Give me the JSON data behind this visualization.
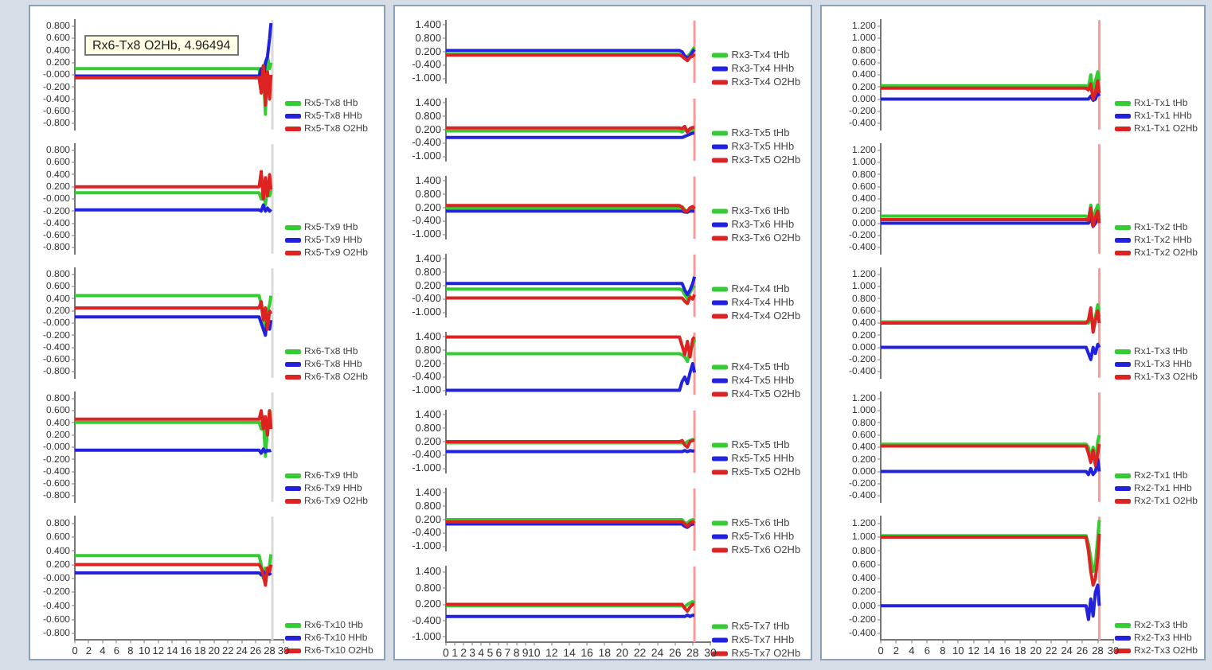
{
  "chart_data": [
    {
      "type": "line",
      "annotations": [
        "Rx6-Tx8 O2Hb, 4.96494"
      ],
      "x": [
        0,
        26.5,
        26.8,
        27.1,
        27.4,
        27.7,
        28.0,
        28.2
      ],
      "xlim": [
        0,
        30
      ],
      "ylim": [
        -0.9,
        0.9
      ],
      "yticks": [
        {
          "value": 0.8,
          "label": "0.800"
        },
        {
          "value": 0.6,
          "label": "0.600"
        },
        {
          "value": 0.4,
          "label": "0.400"
        },
        {
          "value": 0.2,
          "label": "0.200"
        },
        {
          "value": 0,
          "label": "-0.000"
        },
        {
          "value": -0.2,
          "label": "-0.200"
        },
        {
          "value": -0.4,
          "label": "-0.400"
        },
        {
          "value": -0.6,
          "label": "-0.600"
        },
        {
          "value": -0.8,
          "label": "-0.800"
        }
      ],
      "tick_labels": "y",
      "grid": false,
      "legend": "bottom right",
      "ref_lines": [
        {
          "axis": "x",
          "value": 28.4,
          "color": "#d9d9d9"
        }
      ],
      "series": [
        {
          "name": "Rx5-Tx8 tHb",
          "color": "#33cc33",
          "values": [
            0.1,
            0.1,
            -0.2,
            0.15,
            -0.65,
            0.3,
            0.1,
            0.2
          ]
        },
        {
          "name": "Rx5-Tx8 HHb",
          "color": "#2222dd",
          "values": [
            -0.02,
            -0.02,
            0.1,
            -0.1,
            0.2,
            0.3,
            0.6,
            0.85
          ]
        },
        {
          "name": "Rx5-Tx8 O2Hb",
          "color": "#dd2222",
          "values": [
            -0.05,
            -0.05,
            -0.3,
            0.15,
            -0.5,
            0.05,
            -0.4,
            0.0
          ]
        }
      ]
    },
    {
      "type": "line",
      "x": [
        0,
        26.5,
        26.8,
        27.1,
        27.4,
        27.7,
        28.0,
        28.2
      ],
      "xlim": [
        0,
        30
      ],
      "ylim": [
        -0.9,
        0.9
      ],
      "yticks": [
        {
          "value": 0.8,
          "label": "0.800"
        },
        {
          "value": 0.6,
          "label": "0.600"
        },
        {
          "value": 0.4,
          "label": "0.400"
        },
        {
          "value": 0.2,
          "label": "0.200"
        },
        {
          "value": 0,
          "label": "-0.000"
        },
        {
          "value": -0.2,
          "label": "-0.200"
        },
        {
          "value": -0.4,
          "label": "-0.400"
        },
        {
          "value": -0.6,
          "label": "-0.600"
        },
        {
          "value": -0.8,
          "label": "-0.800"
        }
      ],
      "tick_labels": "y",
      "grid": false,
      "legend": "bottom right",
      "ref_lines": [
        {
          "axis": "x",
          "value": 28.4,
          "color": "#d9d9d9"
        }
      ],
      "series": [
        {
          "name": "Rx5-Tx9 tHb",
          "color": "#33cc33",
          "values": [
            0.1,
            0.1,
            0.0,
            0.15,
            -0.1,
            0.2,
            0.05,
            0.15
          ]
        },
        {
          "name": "Rx5-Tx9 HHb",
          "color": "#2222dd",
          "values": [
            -0.18,
            -0.18,
            -0.2,
            -0.1,
            -0.2,
            -0.15,
            -0.2,
            -0.17
          ]
        },
        {
          "name": "Rx5-Tx9 O2Hb",
          "color": "#dd2222",
          "values": [
            0.2,
            0.2,
            0.45,
            0.0,
            0.35,
            0.05,
            0.4,
            0.15
          ]
        }
      ]
    },
    {
      "type": "line",
      "x": [
        0,
        26.5,
        26.8,
        27.1,
        27.4,
        27.7,
        28.0,
        28.2
      ],
      "xlim": [
        0,
        30
      ],
      "ylim": [
        -0.9,
        0.9
      ],
      "yticks": [
        {
          "value": 0.8,
          "label": "0.800"
        },
        {
          "value": 0.6,
          "label": "0.600"
        },
        {
          "value": 0.4,
          "label": "0.400"
        },
        {
          "value": 0.2,
          "label": "0.200"
        },
        {
          "value": 0,
          "label": "-0.000"
        },
        {
          "value": -0.2,
          "label": "-0.200"
        },
        {
          "value": -0.4,
          "label": "-0.400"
        },
        {
          "value": -0.6,
          "label": "-0.600"
        },
        {
          "value": -0.8,
          "label": "-0.800"
        }
      ],
      "tick_labels": "y",
      "grid": false,
      "legend": "bottom right",
      "ref_lines": [
        {
          "axis": "x",
          "value": 28.4,
          "color": "#d9d9d9"
        }
      ],
      "series": [
        {
          "name": "Rx6-Tx8 tHb",
          "color": "#33cc33",
          "values": [
            0.45,
            0.45,
            0.3,
            0.1,
            -0.05,
            0.2,
            0.3,
            0.45
          ]
        },
        {
          "name": "Rx6-Tx8 HHb",
          "color": "#2222dd",
          "values": [
            0.1,
            0.1,
            0.0,
            -0.1,
            -0.2,
            0.1,
            -0.1,
            0.05
          ]
        },
        {
          "name": "Rx6-Tx8 O2Hb",
          "color": "#dd2222",
          "values": [
            0.25,
            0.25,
            0.35,
            0.05,
            0.25,
            -0.1,
            0.2,
            0.15
          ]
        }
      ]
    },
    {
      "type": "line",
      "x": [
        0,
        26.5,
        26.8,
        27.1,
        27.4,
        27.7,
        28.0,
        28.2
      ],
      "xlim": [
        0,
        30
      ],
      "ylim": [
        -0.9,
        0.9
      ],
      "yticks": [
        {
          "value": 0.8,
          "label": "0.800"
        },
        {
          "value": 0.6,
          "label": "0.600"
        },
        {
          "value": 0.4,
          "label": "0.400"
        },
        {
          "value": 0.2,
          "label": "0.200"
        },
        {
          "value": 0,
          "label": "-0.000"
        },
        {
          "value": -0.2,
          "label": "-0.200"
        },
        {
          "value": -0.4,
          "label": "-0.400"
        },
        {
          "value": -0.6,
          "label": "-0.600"
        },
        {
          "value": -0.8,
          "label": "-0.800"
        }
      ],
      "tick_labels": "y",
      "grid": false,
      "legend": "bottom right",
      "ref_lines": [
        {
          "axis": "x",
          "value": 28.4,
          "color": "#d9d9d9"
        }
      ],
      "series": [
        {
          "name": "Rx6-Tx9 tHb",
          "color": "#33cc33",
          "values": [
            0.41,
            0.41,
            0.3,
            0.5,
            -0.15,
            0.3,
            0.6,
            0.35
          ]
        },
        {
          "name": "Rx6-Tx9 HHb",
          "color": "#2222dd",
          "values": [
            -0.05,
            -0.05,
            -0.1,
            -0.03,
            -0.08,
            -0.05,
            -0.06,
            -0.05
          ]
        },
        {
          "name": "Rx6-Tx9 O2Hb",
          "color": "#dd2222",
          "values": [
            0.46,
            0.46,
            0.6,
            0.3,
            0.5,
            0.2,
            0.6,
            0.3
          ]
        }
      ]
    },
    {
      "type": "line",
      "x": [
        0,
        26.5,
        26.8,
        27.1,
        27.4,
        27.7,
        28.0,
        28.2
      ],
      "xlim": [
        0,
        30
      ],
      "xticks": [
        0,
        2,
        4,
        6,
        8,
        10,
        12,
        14,
        16,
        18,
        20,
        22,
        24,
        26,
        28,
        30
      ],
      "ylim": [
        -0.9,
        0.9
      ],
      "yticks": [
        {
          "value": 0.8,
          "label": "0.800"
        },
        {
          "value": 0.6,
          "label": "0.600"
        },
        {
          "value": 0.4,
          "label": "0.400"
        },
        {
          "value": 0.2,
          "label": "0.200"
        },
        {
          "value": 0,
          "label": "-0.000"
        },
        {
          "value": -0.2,
          "label": "-0.200"
        },
        {
          "value": -0.4,
          "label": "-0.400"
        },
        {
          "value": -0.6,
          "label": "-0.600"
        },
        {
          "value": -0.8,
          "label": "-0.800"
        }
      ],
      "grid": false,
      "legend": "bottom right",
      "ref_lines": [
        {
          "axis": "x",
          "value": 28.4,
          "color": "#d9d9d9"
        }
      ],
      "series": [
        {
          "name": "Rx6-Tx10 tHb",
          "color": "#33cc33",
          "values": [
            0.33,
            0.33,
            0.2,
            0.0,
            0.15,
            0.05,
            0.2,
            0.35
          ]
        },
        {
          "name": "Rx6-Tx10 HHb",
          "color": "#2222dd",
          "values": [
            0.08,
            0.08,
            0.05,
            0.1,
            0.05,
            0.08,
            0.06,
            0.08
          ]
        },
        {
          "name": "Rx6-Tx10 O2Hb",
          "color": "#dd2222",
          "values": [
            0.2,
            0.2,
            0.15,
            0.05,
            -0.1,
            0.15,
            0.1,
            0.2
          ]
        }
      ]
    },
    {
      "type": "line",
      "x": [
        0,
        26.5,
        26.8,
        27.1,
        27.4,
        27.7,
        28.0,
        28.2
      ],
      "xlim": [
        0,
        30
      ],
      "ylim": [
        -1.2,
        1.6
      ],
      "yticks": [
        {
          "value": 1.4,
          "label": "1.400"
        },
        {
          "value": 0.8,
          "label": "0.800"
        },
        {
          "value": 0.2,
          "label": "0.200"
        },
        {
          "value": -0.4,
          "label": "-0.400"
        },
        {
          "value": -1,
          "label": "-1.000"
        }
      ],
      "tick_labels": "y",
      "grid": false,
      "legend": "bottom right",
      "ref_lines": [
        {
          "axis": "x",
          "value": 28.2,
          "color": "#ff9999"
        }
      ],
      "series": [
        {
          "name": "Rx3-Tx4 tHb",
          "color": "#33cc33",
          "values": [
            0.08,
            0.08,
            0.0,
            -0.1,
            0.0,
            0.1,
            0.3,
            0.4
          ]
        },
        {
          "name": "Rx3-Tx4 HHb",
          "color": "#2222dd",
          "values": [
            0.25,
            0.25,
            0.2,
            0.0,
            -0.1,
            0.0,
            0.2,
            0.3
          ]
        },
        {
          "name": "Rx3-Tx4 O2Hb",
          "color": "#dd2222",
          "values": [
            0.05,
            0.05,
            0.0,
            -0.1,
            -0.2,
            -0.05,
            0.0,
            0.1
          ]
        }
      ]
    },
    {
      "type": "line",
      "x": [
        0,
        26.5,
        26.8,
        27.1,
        27.4,
        27.7,
        28.0,
        28.2
      ],
      "xlim": [
        0,
        30
      ],
      "ylim": [
        -1.2,
        1.6
      ],
      "yticks": [
        {
          "value": 1.4,
          "label": "1.400"
        },
        {
          "value": 0.8,
          "label": "0.800"
        },
        {
          "value": 0.2,
          "label": "0.200"
        },
        {
          "value": -0.4,
          "label": "-0.400"
        },
        {
          "value": -1,
          "label": "-1.000"
        }
      ],
      "tick_labels": "y",
      "grid": false,
      "legend": "bottom right",
      "ref_lines": [
        {
          "axis": "x",
          "value": 28.2,
          "color": "#ff9999"
        }
      ],
      "series": [
        {
          "name": "Rx3-Tx5 tHb",
          "color": "#33cc33",
          "values": [
            0.15,
            0.15,
            0.1,
            0.2,
            0.1,
            0.15,
            0.2,
            0.2
          ]
        },
        {
          "name": "Rx3-Tx5 HHb",
          "color": "#2222dd",
          "values": [
            -0.15,
            -0.15,
            -0.15,
            -0.1,
            -0.05,
            0.0,
            0.05,
            0.05
          ]
        },
        {
          "name": "Rx3-Tx5 O2Hb",
          "color": "#dd2222",
          "values": [
            0.28,
            0.28,
            0.25,
            0.35,
            0.1,
            0.25,
            0.3,
            0.3
          ]
        }
      ]
    },
    {
      "type": "line",
      "x": [
        0,
        26.5,
        26.8,
        27.1,
        27.4,
        27.7,
        28.0,
        28.2
      ],
      "xlim": [
        0,
        30
      ],
      "ylim": [
        -1.2,
        1.6
      ],
      "yticks": [
        {
          "value": 1.4,
          "label": "1.400"
        },
        {
          "value": 0.8,
          "label": "0.800"
        },
        {
          "value": 0.2,
          "label": "0.200"
        },
        {
          "value": -0.4,
          "label": "-0.400"
        },
        {
          "value": -1,
          "label": "-1.000"
        }
      ],
      "tick_labels": "y",
      "grid": false,
      "legend": "bottom right",
      "ref_lines": [
        {
          "axis": "x",
          "value": 28.2,
          "color": "#ff9999"
        }
      ],
      "series": [
        {
          "name": "Rx3-Tx6 tHb",
          "color": "#33cc33",
          "values": [
            0.2,
            0.2,
            0.25,
            0.1,
            0.0,
            0.15,
            0.2,
            0.15
          ]
        },
        {
          "name": "Rx3-Tx6 HHb",
          "color": "#2222dd",
          "values": [
            0.05,
            0.05,
            0.05,
            0.0,
            0.0,
            0.05,
            0.05,
            0.05
          ]
        },
        {
          "name": "Rx3-Tx6 O2Hb",
          "color": "#dd2222",
          "values": [
            0.3,
            0.3,
            0.2,
            0.05,
            0.05,
            0.2,
            0.25,
            0.15
          ]
        }
      ]
    },
    {
      "type": "line",
      "x": [
        0,
        26.5,
        26.8,
        27.1,
        27.4,
        27.7,
        28.0,
        28.2
      ],
      "xlim": [
        0,
        30
      ],
      "ylim": [
        -1.2,
        1.6
      ],
      "yticks": [
        {
          "value": 1.4,
          "label": "1.400"
        },
        {
          "value": 0.8,
          "label": "0.800"
        },
        {
          "value": 0.2,
          "label": "0.200"
        },
        {
          "value": -0.4,
          "label": "-0.400"
        },
        {
          "value": -1,
          "label": "-1.000"
        }
      ],
      "tick_labels": "y",
      "grid": false,
      "legend": "bottom right",
      "ref_lines": [
        {
          "axis": "x",
          "value": 28.2,
          "color": "#ff9999"
        }
      ],
      "series": [
        {
          "name": "Rx4-Tx4 tHb",
          "color": "#33cc33",
          "values": [
            0.05,
            0.05,
            0.0,
            -0.2,
            -0.4,
            -0.1,
            0.1,
            0.2
          ]
        },
        {
          "name": "Rx4-Tx4 HHb",
          "color": "#2222dd",
          "values": [
            0.3,
            0.3,
            0.3,
            0.0,
            -0.2,
            0.0,
            0.3,
            0.6
          ]
        },
        {
          "name": "Rx4-Tx4 O2Hb",
          "color": "#dd2222",
          "values": [
            -0.35,
            -0.35,
            -0.35,
            -0.5,
            -0.6,
            -0.3,
            -0.4,
            -0.2
          ]
        }
      ]
    },
    {
      "type": "line",
      "x": [
        0,
        26.5,
        26.8,
        27.1,
        27.4,
        27.7,
        28.0,
        28.2
      ],
      "xlim": [
        0,
        30
      ],
      "ylim": [
        -1.2,
        1.6
      ],
      "yticks": [
        {
          "value": 1.4,
          "label": "1.400"
        },
        {
          "value": 0.8,
          "label": "0.800"
        },
        {
          "value": 0.2,
          "label": "0.200"
        },
        {
          "value": -0.4,
          "label": "-0.400"
        },
        {
          "value": -1,
          "label": "-1.000"
        }
      ],
      "tick_labels": "y",
      "grid": false,
      "legend": "bottom right",
      "ref_lines": [
        {
          "axis": "x",
          "value": 28.2,
          "color": "#ff9999"
        }
      ],
      "series": [
        {
          "name": "Rx4-Tx5 tHb",
          "color": "#33cc33",
          "values": [
            0.65,
            0.65,
            0.6,
            0.5,
            0.3,
            0.8,
            1.0,
            1.3
          ]
        },
        {
          "name": "Rx4-Tx5 HHb",
          "color": "#2222dd",
          "values": [
            -1.0,
            -1.0,
            -0.6,
            -0.4,
            -0.7,
            -0.2,
            0.2,
            -0.2
          ]
        },
        {
          "name": "Rx4-Tx5 O2Hb",
          "color": "#dd2222",
          "values": [
            1.4,
            1.4,
            1.0,
            0.6,
            1.2,
            0.5,
            1.3,
            1.4
          ]
        }
      ]
    },
    {
      "type": "line",
      "x": [
        0,
        26.5,
        26.8,
        27.1,
        27.4,
        27.7,
        28.0,
        28.2
      ],
      "xlim": [
        0,
        30
      ],
      "ylim": [
        -1.2,
        1.6
      ],
      "yticks": [
        {
          "value": 1.4,
          "label": "1.400"
        },
        {
          "value": 0.8,
          "label": "0.800"
        },
        {
          "value": 0.2,
          "label": "0.200"
        },
        {
          "value": -0.4,
          "label": "-0.400"
        },
        {
          "value": -1,
          "label": "-1.000"
        }
      ],
      "tick_labels": "y",
      "grid": false,
      "legend": "bottom right",
      "ref_lines": [
        {
          "axis": "x",
          "value": 28.2,
          "color": "#ff9999"
        }
      ],
      "series": [
        {
          "name": "Rx5-Tx5 tHb",
          "color": "#33cc33",
          "values": [
            0.15,
            0.15,
            0.15,
            0.1,
            0.2,
            0.25,
            0.3,
            0.25
          ]
        },
        {
          "name": "Rx5-Tx5 HHb",
          "color": "#2222dd",
          "values": [
            -0.25,
            -0.25,
            -0.25,
            -0.2,
            -0.25,
            -0.2,
            -0.22,
            -0.22
          ]
        },
        {
          "name": "Rx5-Tx5 O2Hb",
          "color": "#dd2222",
          "values": [
            0.2,
            0.2,
            0.25,
            0.05,
            -0.05,
            0.2,
            0.25,
            0.25
          ]
        }
      ]
    },
    {
      "type": "line",
      "x": [
        0,
        26.5,
        26.8,
        27.1,
        27.4,
        27.7,
        28.0,
        28.2
      ],
      "xlim": [
        0,
        30
      ],
      "ylim": [
        -1.2,
        1.6
      ],
      "yticks": [
        {
          "value": 1.4,
          "label": "1.400"
        },
        {
          "value": 0.8,
          "label": "0.800"
        },
        {
          "value": 0.2,
          "label": "0.200"
        },
        {
          "value": -0.4,
          "label": "-0.400"
        },
        {
          "value": -1,
          "label": "-1.000"
        }
      ],
      "tick_labels": "y",
      "grid": false,
      "legend": "bottom right",
      "ref_lines": [
        {
          "axis": "x",
          "value": 28.2,
          "color": "#ff9999"
        }
      ],
      "series": [
        {
          "name": "Rx5-Tx6 tHb",
          "color": "#33cc33",
          "values": [
            0.2,
            0.2,
            0.2,
            0.05,
            0.05,
            0.15,
            0.2,
            0.15
          ]
        },
        {
          "name": "Rx5-Tx6 HHb",
          "color": "#2222dd",
          "values": [
            0.0,
            0.0,
            0.0,
            -0.1,
            -0.15,
            -0.05,
            0.0,
            0.0
          ]
        },
        {
          "name": "Rx5-Tx6 O2Hb",
          "color": "#dd2222",
          "values": [
            0.1,
            0.1,
            0.1,
            0.0,
            -0.1,
            0.05,
            0.1,
            0.05
          ]
        }
      ]
    },
    {
      "type": "line",
      "x": [
        0,
        26.5,
        26.8,
        27.1,
        27.4,
        27.7,
        28.0,
        28.2
      ],
      "xlim": [
        0,
        30
      ],
      "xticks": [
        0,
        1,
        2,
        3,
        4,
        5,
        6,
        7,
        8,
        9,
        10,
        12,
        14,
        16,
        18,
        20,
        22,
        24,
        26,
        28,
        30
      ],
      "ylim": [
        -1.2,
        1.6
      ],
      "yticks": [
        {
          "value": 1.4,
          "label": "1.400"
        },
        {
          "value": 0.8,
          "label": "0.800"
        },
        {
          "value": 0.2,
          "label": "0.200"
        },
        {
          "value": -0.4,
          "label": "-0.400"
        },
        {
          "value": -1,
          "label": "-1.000"
        }
      ],
      "grid": false,
      "legend": "bottom right",
      "ref_lines": [
        {
          "axis": "x",
          "value": 28.2,
          "color": "#ff9999"
        }
      ],
      "series": [
        {
          "name": "Rx5-Tx7 tHb",
          "color": "#33cc33",
          "values": [
            0.15,
            0.15,
            0.15,
            0.1,
            0.2,
            0.25,
            0.3,
            0.25
          ]
        },
        {
          "name": "Rx5-Tx7 HHb",
          "color": "#2222dd",
          "values": [
            -0.25,
            -0.25,
            -0.25,
            -0.25,
            -0.2,
            -0.25,
            -0.2,
            -0.2
          ]
        },
        {
          "name": "Rx5-Tx7 O2Hb",
          "color": "#dd2222",
          "values": [
            0.2,
            0.2,
            0.2,
            0.05,
            -0.05,
            0.1,
            0.2,
            0.2
          ]
        }
      ]
    },
    {
      "type": "line",
      "x": [
        0,
        26.5,
        26.8,
        27.1,
        27.4,
        27.7,
        28.0,
        28.2
      ],
      "xlim": [
        0,
        30
      ],
      "ylim": [
        -0.5,
        1.3
      ],
      "yticks": [
        {
          "value": 1.2,
          "label": "1.200"
        },
        {
          "value": 1,
          "label": "1.000"
        },
        {
          "value": 0.8,
          "label": "0.800"
        },
        {
          "value": 0.6,
          "label": "0.600"
        },
        {
          "value": 0.4,
          "label": "0.400"
        },
        {
          "value": 0.2,
          "label": "0.200"
        },
        {
          "value": 0,
          "label": "0.000"
        },
        {
          "value": -0.2,
          "label": "-0.200"
        },
        {
          "value": -0.4,
          "label": "-0.400"
        }
      ],
      "tick_labels": "y",
      "grid": false,
      "legend": "bottom right",
      "ref_lines": [
        {
          "axis": "x",
          "value": 28.2,
          "color": "#ff9999"
        }
      ],
      "series": [
        {
          "name": "Rx1-Tx1 tHb",
          "color": "#33cc33",
          "values": [
            0.22,
            0.22,
            0.2,
            0.4,
            0.1,
            0.3,
            0.45,
            0.3
          ]
        },
        {
          "name": "Rx1-Tx1 HHb",
          "color": "#2222dd",
          "values": [
            0.0,
            0.0,
            0.0,
            0.05,
            -0.02,
            0.0,
            0.1,
            0.05
          ]
        },
        {
          "name": "Rx1-Tx1 O2Hb",
          "color": "#dd2222",
          "values": [
            0.18,
            0.18,
            0.15,
            0.25,
            0.0,
            0.1,
            0.3,
            0.1
          ]
        }
      ]
    },
    {
      "type": "line",
      "x": [
        0,
        26.5,
        26.8,
        27.1,
        27.4,
        27.7,
        28.0,
        28.2
      ],
      "xlim": [
        0,
        30
      ],
      "ylim": [
        -0.5,
        1.3
      ],
      "yticks": [
        {
          "value": 1.2,
          "label": "1.200"
        },
        {
          "value": 1,
          "label": "1.000"
        },
        {
          "value": 0.8,
          "label": "0.800"
        },
        {
          "value": 0.6,
          "label": "0.600"
        },
        {
          "value": 0.4,
          "label": "0.400"
        },
        {
          "value": 0.2,
          "label": "0.200"
        },
        {
          "value": 0,
          "label": "0.000"
        },
        {
          "value": -0.2,
          "label": "-0.200"
        },
        {
          "value": -0.4,
          "label": "-0.400"
        }
      ],
      "tick_labels": "y",
      "grid": false,
      "legend": "bottom right",
      "ref_lines": [
        {
          "axis": "x",
          "value": 28.2,
          "color": "#ff9999"
        }
      ],
      "series": [
        {
          "name": "Rx1-Tx2 tHb",
          "color": "#33cc33",
          "values": [
            0.12,
            0.12,
            0.05,
            0.3,
            0.0,
            0.2,
            0.3,
            0.1
          ]
        },
        {
          "name": "Rx1-Tx2 HHb",
          "color": "#2222dd",
          "values": [
            0.0,
            0.0,
            0.0,
            0.1,
            -0.05,
            0.0,
            0.1,
            0.05
          ]
        },
        {
          "name": "Rx1-Tx2 O2Hb",
          "color": "#dd2222",
          "values": [
            0.06,
            0.06,
            0.05,
            0.25,
            -0.05,
            0.1,
            0.2,
            0.0
          ]
        }
      ]
    },
    {
      "type": "line",
      "x": [
        0,
        26.5,
        26.8,
        27.1,
        27.4,
        27.7,
        28.0,
        28.2
      ],
      "xlim": [
        0,
        30
      ],
      "ylim": [
        -0.5,
        1.3
      ],
      "yticks": [
        {
          "value": 1.2,
          "label": "1.200"
        },
        {
          "value": 1,
          "label": "1.000"
        },
        {
          "value": 0.8,
          "label": "0.800"
        },
        {
          "value": 0.6,
          "label": "0.600"
        },
        {
          "value": 0.4,
          "label": "0.400"
        },
        {
          "value": 0.2,
          "label": "0.200"
        },
        {
          "value": 0,
          "label": "0.000"
        },
        {
          "value": -0.2,
          "label": "-0.200"
        },
        {
          "value": -0.4,
          "label": "-0.400"
        }
      ],
      "tick_labels": "y",
      "grid": false,
      "legend": "bottom right",
      "ref_lines": [
        {
          "axis": "x",
          "value": 28.2,
          "color": "#ff9999"
        }
      ],
      "series": [
        {
          "name": "Rx1-Tx3 tHb",
          "color": "#33cc33",
          "values": [
            0.42,
            0.42,
            0.4,
            0.6,
            0.3,
            0.5,
            0.7,
            0.5
          ]
        },
        {
          "name": "Rx1-Tx3 HHb",
          "color": "#2222dd",
          "values": [
            0.0,
            0.0,
            -0.1,
            -0.2,
            0.0,
            -0.1,
            0.05,
            0.0
          ]
        },
        {
          "name": "Rx1-Tx3 O2Hb",
          "color": "#dd2222",
          "values": [
            0.4,
            0.4,
            0.45,
            0.65,
            0.25,
            0.45,
            0.6,
            0.4
          ]
        }
      ]
    },
    {
      "type": "line",
      "x": [
        0,
        26.5,
        26.8,
        27.1,
        27.4,
        27.7,
        28.0,
        28.2
      ],
      "xlim": [
        0,
        30
      ],
      "ylim": [
        -0.5,
        1.3
      ],
      "yticks": [
        {
          "value": 1.2,
          "label": "1.200"
        },
        {
          "value": 1,
          "label": "1.000"
        },
        {
          "value": 0.8,
          "label": "0.800"
        },
        {
          "value": 0.6,
          "label": "0.600"
        },
        {
          "value": 0.4,
          "label": "0.400"
        },
        {
          "value": 0.2,
          "label": "0.200"
        },
        {
          "value": 0,
          "label": "0.000"
        },
        {
          "value": -0.2,
          "label": "-0.200"
        },
        {
          "value": -0.4,
          "label": "-0.400"
        }
      ],
      "tick_labels": "y",
      "grid": false,
      "legend": "bottom right",
      "ref_lines": [
        {
          "axis": "x",
          "value": 28.2,
          "color": "#ff9999"
        }
      ],
      "series": [
        {
          "name": "Rx2-Tx1 tHb",
          "color": "#33cc33",
          "values": [
            0.45,
            0.45,
            0.4,
            0.2,
            0.4,
            0.15,
            0.5,
            0.6
          ]
        },
        {
          "name": "Rx2-Tx1 HHb",
          "color": "#2222dd",
          "values": [
            0.0,
            0.0,
            -0.05,
            0.05,
            -0.05,
            0.0,
            0.2,
            0.0
          ]
        },
        {
          "name": "Rx2-Tx1 O2Hb",
          "color": "#dd2222",
          "values": [
            0.42,
            0.42,
            0.3,
            0.15,
            0.35,
            0.1,
            0.3,
            0.45
          ]
        }
      ]
    },
    {
      "type": "line",
      "x": [
        0,
        26.5,
        26.8,
        27.1,
        27.4,
        27.7,
        28.0,
        28.2
      ],
      "xlim": [
        0,
        30
      ],
      "xticks": [
        0,
        2,
        4,
        6,
        8,
        10,
        12,
        14,
        16,
        18,
        20,
        22,
        24,
        26,
        28,
        30
      ],
      "ylim": [
        -0.5,
        1.3
      ],
      "yticks": [
        {
          "value": 1.2,
          "label": "1.200"
        },
        {
          "value": 1,
          "label": "1.000"
        },
        {
          "value": 0.8,
          "label": "0.800"
        },
        {
          "value": 0.6,
          "label": "0.600"
        },
        {
          "value": 0.4,
          "label": "0.400"
        },
        {
          "value": 0.2,
          "label": "0.200"
        },
        {
          "value": 0,
          "label": "0.000"
        },
        {
          "value": -0.2,
          "label": "-0.200"
        },
        {
          "value": -0.4,
          "label": "-0.400"
        }
      ],
      "grid": false,
      "legend": "bottom right",
      "ref_lines": [
        {
          "axis": "x",
          "value": 28.2,
          "color": "#ff9999"
        }
      ],
      "series": [
        {
          "name": "Rx2-Tx3 tHb",
          "color": "#33cc33",
          "values": [
            1.02,
            1.02,
            0.9,
            0.7,
            0.5,
            0.6,
            1.0,
            1.25
          ]
        },
        {
          "name": "Rx2-Tx3 HHb",
          "color": "#2222dd",
          "values": [
            0.0,
            0.0,
            -0.2,
            0.1,
            -0.15,
            0.2,
            0.3,
            0.0
          ]
        },
        {
          "name": "Rx2-Tx3 O2Hb",
          "color": "#dd2222",
          "values": [
            1.0,
            1.0,
            0.8,
            0.5,
            0.3,
            0.4,
            0.7,
            1.05
          ]
        }
      ]
    }
  ]
}
